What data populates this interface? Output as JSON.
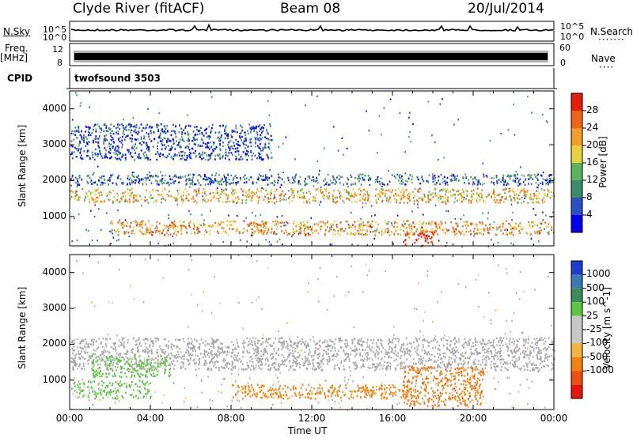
{
  "header": {
    "station": "Clyde River (fitACF)",
    "beam": "Beam 08",
    "date": "20/Jul/2014"
  },
  "side_labels": {
    "nsky": "N.Sky",
    "nsearch": "N.Search",
    "freq": "Freq.",
    "freq_unit": "[MHz]",
    "nave": "Nave",
    "cpid": "CPID",
    "nsearch_dots": "·······",
    "nave_dots": "····"
  },
  "strip_ticks": {
    "noise_top_left": "10^5",
    "noise_bottom_left": "10^0",
    "noise_top_right": "10^5",
    "noise_bottom_right": "10^0",
    "freq_top": "12",
    "freq_bottom": "8",
    "nave_top": "60",
    "nave_bottom": "0"
  },
  "cpid_text": "twofsound 3503",
  "colors": {
    "power_scale": [
      "#0000ee",
      "#2850c8",
      "#3c8c6e",
      "#5cb45c",
      "#e8d23c",
      "#f59c28",
      "#f06414",
      "#e61e0a"
    ],
    "velocity_scale": [
      "#e6140a",
      "#f0500f",
      "#f5820f",
      "#f5b43c",
      "#c8c8c8",
      "#c8c8c8",
      "#5ac83c",
      "#3c8c5a",
      "#3c78b4",
      "#1e3cd2"
    ],
    "ground_scatter": "#a9a9a9"
  },
  "chart_data": [
    {
      "type": "heatmap",
      "title": "Power",
      "xlabel": "",
      "ylabel": "Slant Range [km]",
      "x_ticks": [],
      "y_ticks": [
        "1000",
        "2000",
        "3000",
        "4000"
      ],
      "xlim": [
        0,
        24
      ],
      "ylim": [
        180,
        4500
      ],
      "colorbar_label": "Power [dB]",
      "colorbar_ticks": [
        "4",
        "8",
        "12",
        "16",
        "20",
        "24",
        "28"
      ],
      "colorbar_range": [
        0,
        32
      ],
      "grid": false,
      "bands": [
        {
          "range_km": [
            1400,
            1800
          ],
          "time_ut": [
            0,
            24
          ],
          "level_db": 20
        },
        {
          "range_km": [
            500,
            900
          ],
          "time_ut": [
            2,
            24
          ],
          "level_db": 22
        },
        {
          "range_km": [
            200,
            600
          ],
          "time_ut": [
            16.5,
            18
          ],
          "level_db": 30
        },
        {
          "range_km": [
            1900,
            2200
          ],
          "time_ut": [
            0,
            24
          ],
          "level_db": 8
        },
        {
          "range_km": [
            2600,
            3600
          ],
          "time_ut": [
            0,
            10
          ],
          "level_db": 6
        }
      ]
    },
    {
      "type": "heatmap",
      "title": "Velocity",
      "xlabel": "Time UT",
      "ylabel": "Slant Range [km]",
      "x_ticks": [
        "00:00",
        "04:00",
        "08:00",
        "12:00",
        "16:00",
        "20:00",
        "00:00"
      ],
      "y_ticks": [
        "1000",
        "2000",
        "3000",
        "4000"
      ],
      "xlim": [
        0,
        24
      ],
      "ylim": [
        180,
        4500
      ],
      "colorbar_label": "Velocity [m s^-1]",
      "colorbar_ticks": [
        "1000",
        "500",
        "100",
        "25",
        "-25",
        "-100",
        "-500",
        "-1000"
      ],
      "grid": false,
      "bands": [
        {
          "range_km": [
            1300,
            2200
          ],
          "time_ut": [
            0,
            24
          ],
          "velocity": "ground scatter"
        },
        {
          "range_km": [
            500,
            900
          ],
          "time_ut": [
            8,
            17
          ],
          "velocity": -150
        },
        {
          "range_km": [
            300,
            1400
          ],
          "time_ut": [
            16.5,
            20.5
          ],
          "velocity": -400
        },
        {
          "range_km": [
            1100,
            1700
          ],
          "time_ut": [
            1,
            5
          ],
          "velocity": 150
        },
        {
          "range_km": [
            500,
            1000
          ],
          "time_ut": [
            0,
            4
          ],
          "velocity": 120
        }
      ]
    }
  ]
}
